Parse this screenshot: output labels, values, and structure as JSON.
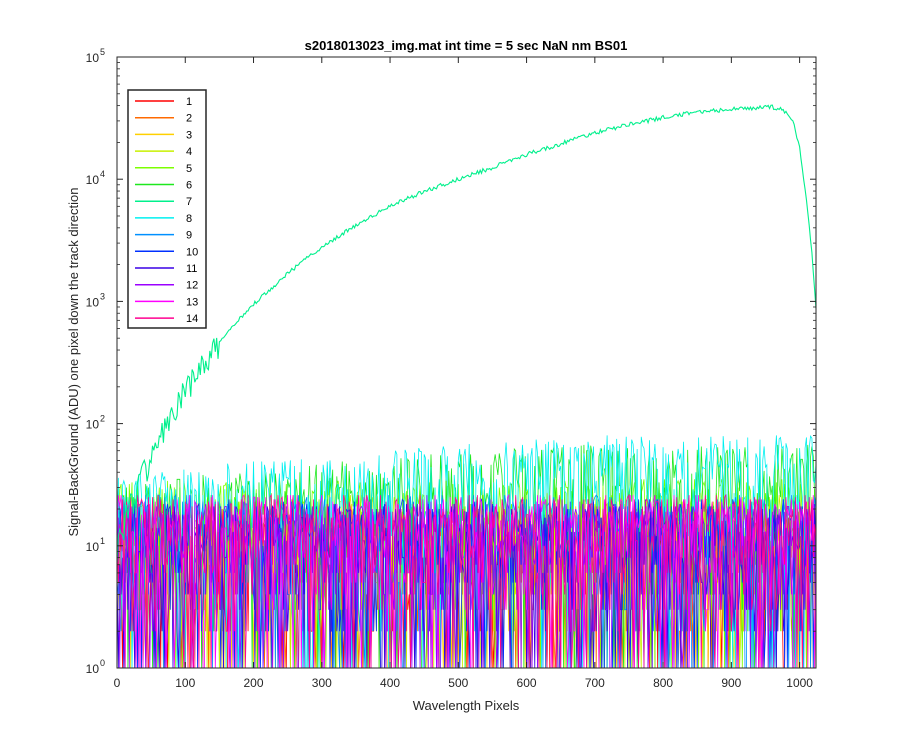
{
  "chart_data": {
    "type": "line",
    "title": "s2018013023_img.mat int time = 5 sec  NaN nm BS01",
    "xlabel": "Wavelength Pixels",
    "ylabel": "Signal-BackGround (ADU) one pixel down the track direction",
    "xlim": [
      0,
      1024
    ],
    "ylim": [
      1,
      100000
    ],
    "yscale": "log",
    "xticks": [
      "0",
      "100",
      "200",
      "300",
      "400",
      "500",
      "600",
      "700",
      "800",
      "900",
      "1000"
    ],
    "yticks": [
      {
        "base": "10",
        "exp": "0"
      },
      {
        "base": "10",
        "exp": "1"
      },
      {
        "base": "10",
        "exp": "2"
      },
      {
        "base": "10",
        "exp": "3"
      },
      {
        "base": "10",
        "exp": "4"
      },
      {
        "base": "10",
        "exp": "5"
      }
    ],
    "legend_position": "top-left",
    "grid": false,
    "series": [
      {
        "name": "1",
        "color": "#ff0000",
        "kind": "noise",
        "level": 8,
        "points": []
      },
      {
        "name": "2",
        "color": "#ff6a00",
        "kind": "noise",
        "level": 9,
        "points": []
      },
      {
        "name": "3",
        "color": "#ffd000",
        "kind": "noise",
        "level": 10,
        "points": []
      },
      {
        "name": "4",
        "color": "#c8f000",
        "kind": "noise",
        "level": 12,
        "points": []
      },
      {
        "name": "5",
        "color": "#7cff00",
        "kind": "noise",
        "level": 16,
        "points": []
      },
      {
        "name": "6",
        "color": "#1ee81e",
        "kind": "noise",
        "level": 24,
        "points": []
      },
      {
        "name": "7",
        "color": "#00f08c",
        "kind": "signal",
        "points": [
          [
            0,
            10
          ],
          [
            10,
            15
          ],
          [
            20,
            22
          ],
          [
            30,
            30
          ],
          [
            40,
            40
          ],
          [
            50,
            55
          ],
          [
            60,
            70
          ],
          [
            70,
            90
          ],
          [
            80,
            115
          ],
          [
            100,
            180
          ],
          [
            120,
            270
          ],
          [
            150,
            450
          ],
          [
            180,
            730
          ],
          [
            200,
            950
          ],
          [
            250,
            1700
          ],
          [
            300,
            2800
          ],
          [
            350,
            4200
          ],
          [
            400,
            6000
          ],
          [
            450,
            8000
          ],
          [
            500,
            10000
          ],
          [
            550,
            12500
          ],
          [
            600,
            16000
          ],
          [
            650,
            19500
          ],
          [
            700,
            24000
          ],
          [
            750,
            28000
          ],
          [
            800,
            32000
          ],
          [
            850,
            35500
          ],
          [
            900,
            37500
          ],
          [
            930,
            38000
          ],
          [
            960,
            39000
          ],
          [
            975,
            37000
          ],
          [
            990,
            30000
          ],
          [
            1000,
            18000
          ],
          [
            1010,
            7000
          ],
          [
            1018,
            2500
          ],
          [
            1024,
            850
          ]
        ]
      },
      {
        "name": "8",
        "color": "#00f0f0",
        "kind": "noise",
        "level": 28,
        "points": []
      },
      {
        "name": "9",
        "color": "#0090ff",
        "kind": "noise",
        "level": 12,
        "points": []
      },
      {
        "name": "10",
        "color": "#0030ff",
        "kind": "noise",
        "level": 11,
        "points": []
      },
      {
        "name": "11",
        "color": "#3a00e6",
        "kind": "noise",
        "level": 10,
        "points": []
      },
      {
        "name": "12",
        "color": "#9b00ff",
        "kind": "noise",
        "level": 10,
        "points": []
      },
      {
        "name": "13",
        "color": "#ff00ff",
        "kind": "noise",
        "level": 12,
        "points": []
      },
      {
        "name": "14",
        "color": "#ff0090",
        "kind": "noise",
        "level": 12,
        "points": []
      }
    ]
  }
}
